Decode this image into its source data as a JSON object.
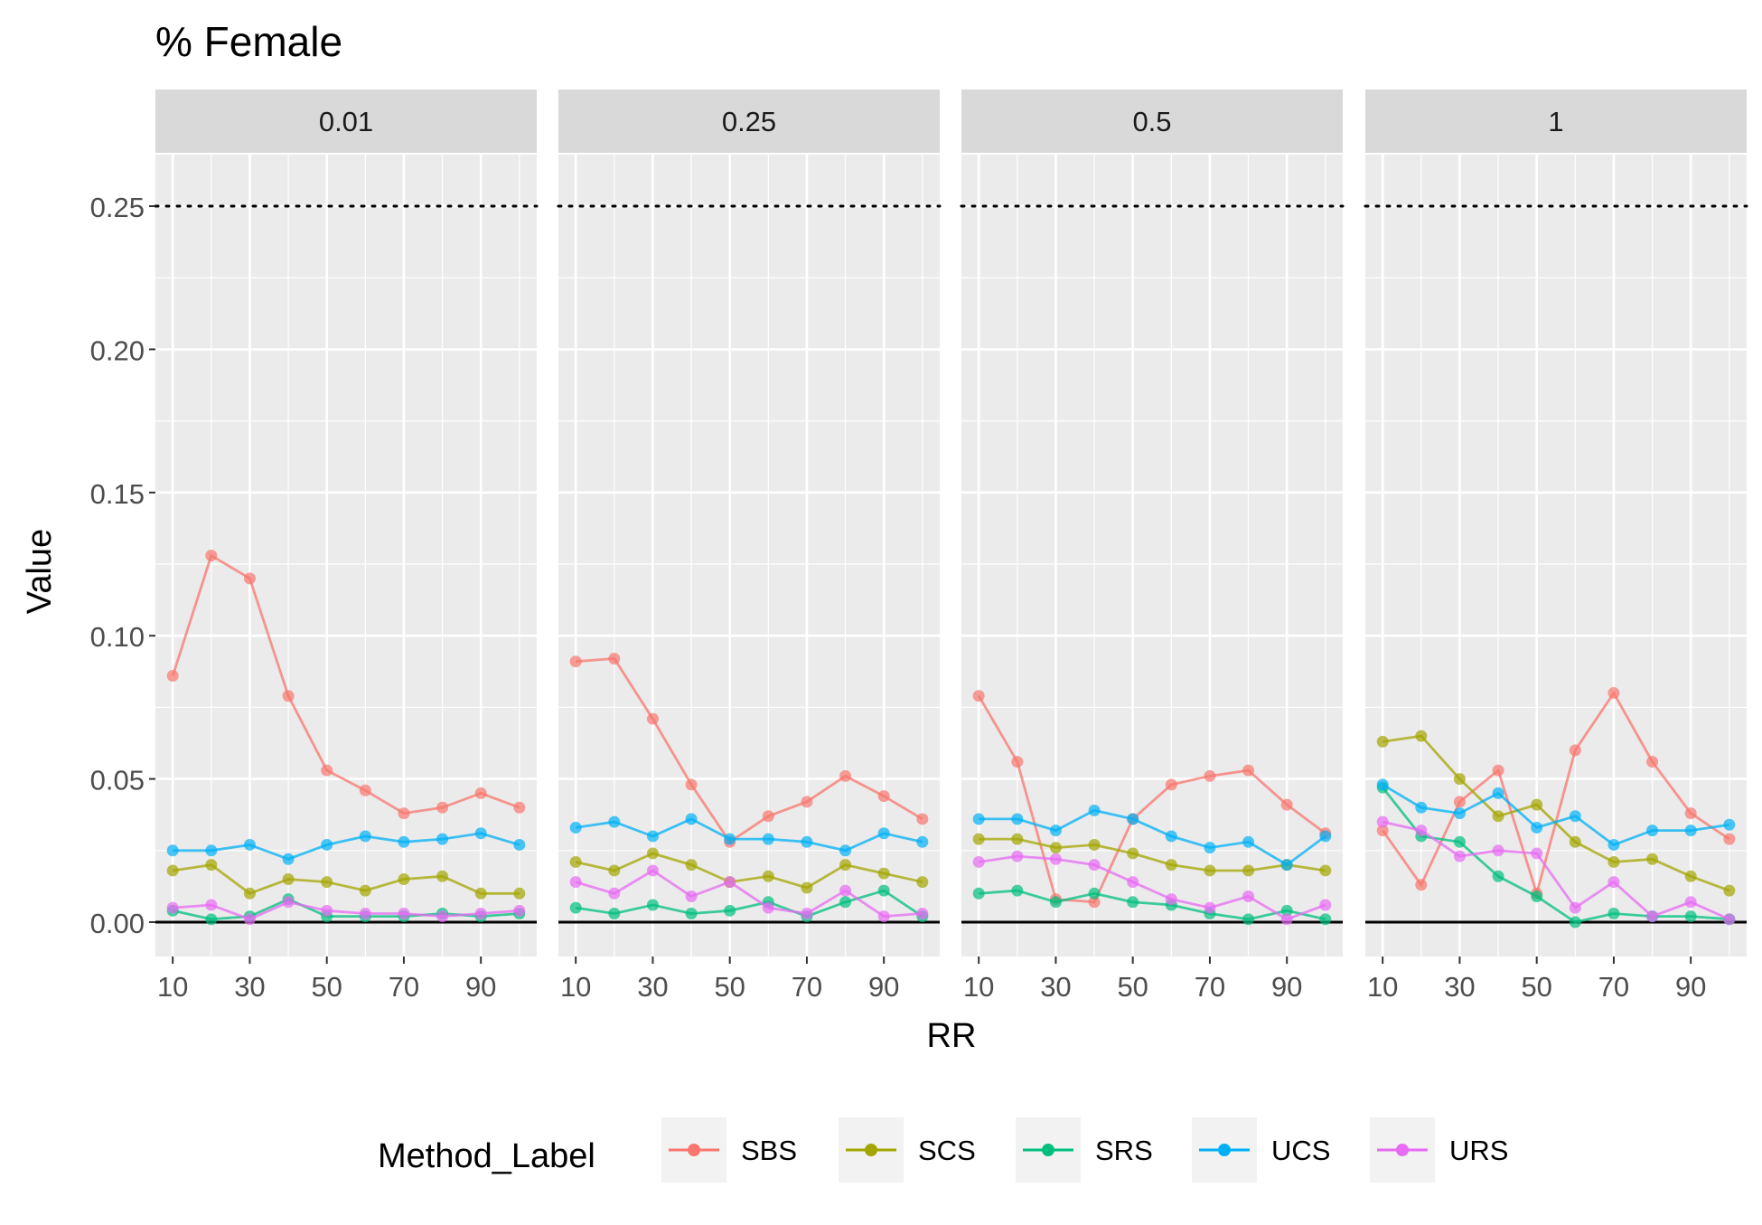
{
  "chart_data": {
    "type": "line",
    "title": "% Female",
    "xlabel": "RR",
    "ylabel": "Value",
    "x": [
      10,
      20,
      30,
      40,
      50,
      60,
      70,
      80,
      90,
      100
    ],
    "x_ticks": [
      10,
      30,
      50,
      70,
      90
    ],
    "y_ticks": [
      "0.00",
      "0.05",
      "0.10",
      "0.15",
      "0.20",
      "0.25"
    ],
    "ylim": [
      -0.012,
      0.268
    ],
    "xlim": [
      5.5,
      104.5
    ],
    "reference_lines": [
      {
        "y": 0.25,
        "style": "dotted"
      },
      {
        "y": 0.0,
        "style": "solid"
      }
    ],
    "grid": true,
    "legend": {
      "title": "Method_Label",
      "position": "bottom",
      "entries": [
        "SBS",
        "SCS",
        "SRS",
        "UCS",
        "URS"
      ]
    },
    "colors": {
      "SBS": "#F8766D",
      "SCS": "#A3A500",
      "SRS": "#00BF7D",
      "UCS": "#00B0F6",
      "URS": "#E76BF3",
      "panel_bg": "#EBEBEB",
      "strip_bg": "#D9D9D9"
    },
    "facets": [
      {
        "label": "0.01",
        "series": [
          {
            "name": "SBS",
            "values": [
              0.086,
              0.128,
              0.12,
              0.079,
              0.053,
              0.046,
              0.038,
              0.04,
              0.045,
              0.04
            ]
          },
          {
            "name": "SCS",
            "values": [
              0.018,
              0.02,
              0.01,
              0.015,
              0.014,
              0.011,
              0.015,
              0.016,
              0.01,
              0.01
            ]
          },
          {
            "name": "SRS",
            "values": [
              0.004,
              0.001,
              0.002,
              0.008,
              0.002,
              0.002,
              0.002,
              0.003,
              0.002,
              0.003
            ]
          },
          {
            "name": "UCS",
            "values": [
              0.025,
              0.025,
              0.027,
              0.022,
              0.027,
              0.03,
              0.028,
              0.029,
              0.031,
              0.027
            ]
          },
          {
            "name": "URS",
            "values": [
              0.005,
              0.006,
              0.001,
              0.007,
              0.004,
              0.003,
              0.003,
              0.002,
              0.003,
              0.004
            ]
          }
        ]
      },
      {
        "label": "0.25",
        "series": [
          {
            "name": "SBS",
            "values": [
              0.091,
              0.092,
              0.071,
              0.048,
              0.028,
              0.037,
              0.042,
              0.051,
              0.044,
              0.036
            ]
          },
          {
            "name": "SCS",
            "values": [
              0.021,
              0.018,
              0.024,
              0.02,
              0.014,
              0.016,
              0.012,
              0.02,
              0.017,
              0.014
            ]
          },
          {
            "name": "SRS",
            "values": [
              0.005,
              0.003,
              0.006,
              0.003,
              0.004,
              0.007,
              0.002,
              0.007,
              0.011,
              0.002
            ]
          },
          {
            "name": "UCS",
            "values": [
              0.033,
              0.035,
              0.03,
              0.036,
              0.029,
              0.029,
              0.028,
              0.025,
              0.031,
              0.028
            ]
          },
          {
            "name": "URS",
            "values": [
              0.014,
              0.01,
              0.018,
              0.009,
              0.014,
              0.005,
              0.003,
              0.011,
              0.002,
              0.003
            ]
          }
        ]
      },
      {
        "label": "0.5",
        "series": [
          {
            "name": "SBS",
            "values": [
              0.079,
              0.056,
              0.008,
              0.007,
              0.036,
              0.048,
              0.051,
              0.053,
              0.041,
              0.031
            ]
          },
          {
            "name": "SCS",
            "values": [
              0.029,
              0.029,
              0.026,
              0.027,
              0.024,
              0.02,
              0.018,
              0.018,
              0.02,
              0.018
            ]
          },
          {
            "name": "SRS",
            "values": [
              0.01,
              0.011,
              0.007,
              0.01,
              0.007,
              0.006,
              0.003,
              0.001,
              0.004,
              0.001
            ]
          },
          {
            "name": "UCS",
            "values": [
              0.036,
              0.036,
              0.032,
              0.039,
              0.036,
              0.03,
              0.026,
              0.028,
              0.02,
              0.03
            ]
          },
          {
            "name": "URS",
            "values": [
              0.021,
              0.023,
              0.022,
              0.02,
              0.014,
              0.008,
              0.005,
              0.009,
              0.001,
              0.006
            ]
          }
        ]
      },
      {
        "label": "1",
        "series": [
          {
            "name": "SBS",
            "values": [
              0.032,
              0.013,
              0.042,
              0.053,
              0.01,
              0.06,
              0.08,
              0.056,
              0.038,
              0.029
            ]
          },
          {
            "name": "SCS",
            "values": [
              0.063,
              0.065,
              0.05,
              0.037,
              0.041,
              0.028,
              0.021,
              0.022,
              0.016,
              0.011
            ]
          },
          {
            "name": "SRS",
            "values": [
              0.047,
              0.03,
              0.028,
              0.016,
              0.009,
              0.0,
              0.003,
              0.002,
              0.002,
              0.001
            ]
          },
          {
            "name": "UCS",
            "values": [
              0.048,
              0.04,
              0.038,
              0.045,
              0.033,
              0.037,
              0.027,
              0.032,
              0.032,
              0.034
            ]
          },
          {
            "name": "URS",
            "values": [
              0.035,
              0.032,
              0.023,
              0.025,
              0.024,
              0.005,
              0.014,
              0.002,
              0.007,
              0.001
            ]
          }
        ]
      }
    ]
  }
}
